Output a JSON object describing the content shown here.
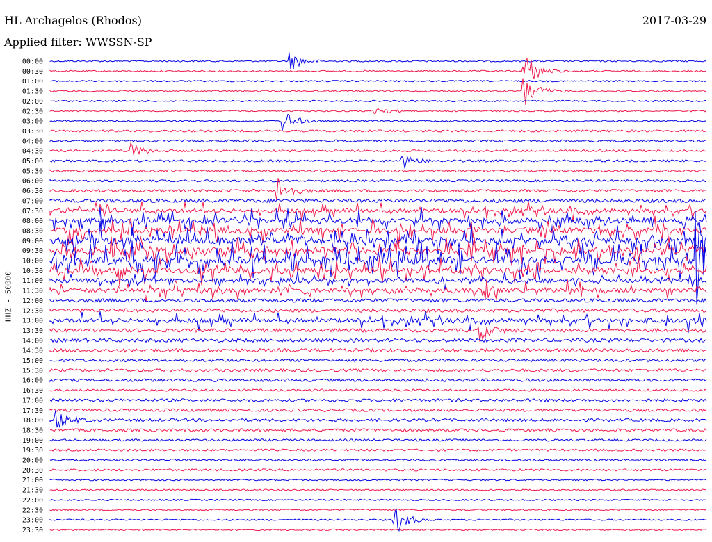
{
  "header": {
    "station": "HL Archagelos (Rhodos)",
    "date": "2017-03-29",
    "filter": "Applied filter: WWSSN-SP"
  },
  "chart_data": {
    "type": "line",
    "title": "HL Archagelos (Rhodos)",
    "ylabel": "HHZ - 50000",
    "colors": {
      "even": "#0000e6",
      "odd": "#f0174a"
    },
    "rows": [
      "00:00",
      "00:30",
      "01:00",
      "01:30",
      "02:00",
      "02:30",
      "03:00",
      "03:30",
      "04:00",
      "04:30",
      "05:00",
      "05:30",
      "06:00",
      "06:30",
      "07:00",
      "07:30",
      "08:00",
      "08:30",
      "09:00",
      "09:30",
      "10:00",
      "10:30",
      "11:00",
      "11:30",
      "12:00",
      "12:30",
      "13:00",
      "13:30",
      "14:00",
      "14:30",
      "15:00",
      "15:30",
      "16:00",
      "16:30",
      "17:00",
      "17:30",
      "18:00",
      "18:30",
      "19:00",
      "19:30",
      "20:00",
      "20:30",
      "21:00",
      "21:30",
      "22:00",
      "22:30",
      "23:00",
      "23:30"
    ],
    "activity": [
      1,
      1,
      1,
      1,
      1,
      1,
      1,
      2,
      2,
      2,
      2,
      2,
      2,
      3,
      4,
      5,
      6,
      7,
      8,
      8,
      9,
      7,
      5,
      5,
      4,
      4,
      5,
      4,
      4,
      4,
      3,
      3,
      3,
      2,
      3,
      3,
      3,
      3,
      2,
      2,
      2,
      2,
      1,
      1,
      1,
      1,
      1,
      1
    ],
    "events": [
      {
        "row": 0,
        "x": 418,
        "amp": 14
      },
      {
        "row": 1,
        "x": 755,
        "amp": 30
      },
      {
        "row": 3,
        "x": 755,
        "amp": 26
      },
      {
        "row": 5,
        "x": 540,
        "amp": 8
      },
      {
        "row": 6,
        "x": 408,
        "amp": 16
      },
      {
        "row": 9,
        "x": 190,
        "amp": 10
      },
      {
        "row": 10,
        "x": 578,
        "amp": 12
      },
      {
        "row": 13,
        "x": 400,
        "amp": 20
      },
      {
        "row": 18,
        "x": 1002,
        "amp": 20
      },
      {
        "row": 20,
        "x": 1002,
        "amp": 60
      },
      {
        "row": 27,
        "x": 690,
        "amp": 14
      },
      {
        "row": 36,
        "x": 80,
        "amp": 16
      },
      {
        "row": 46,
        "x": 568,
        "amp": 22
      }
    ]
  }
}
